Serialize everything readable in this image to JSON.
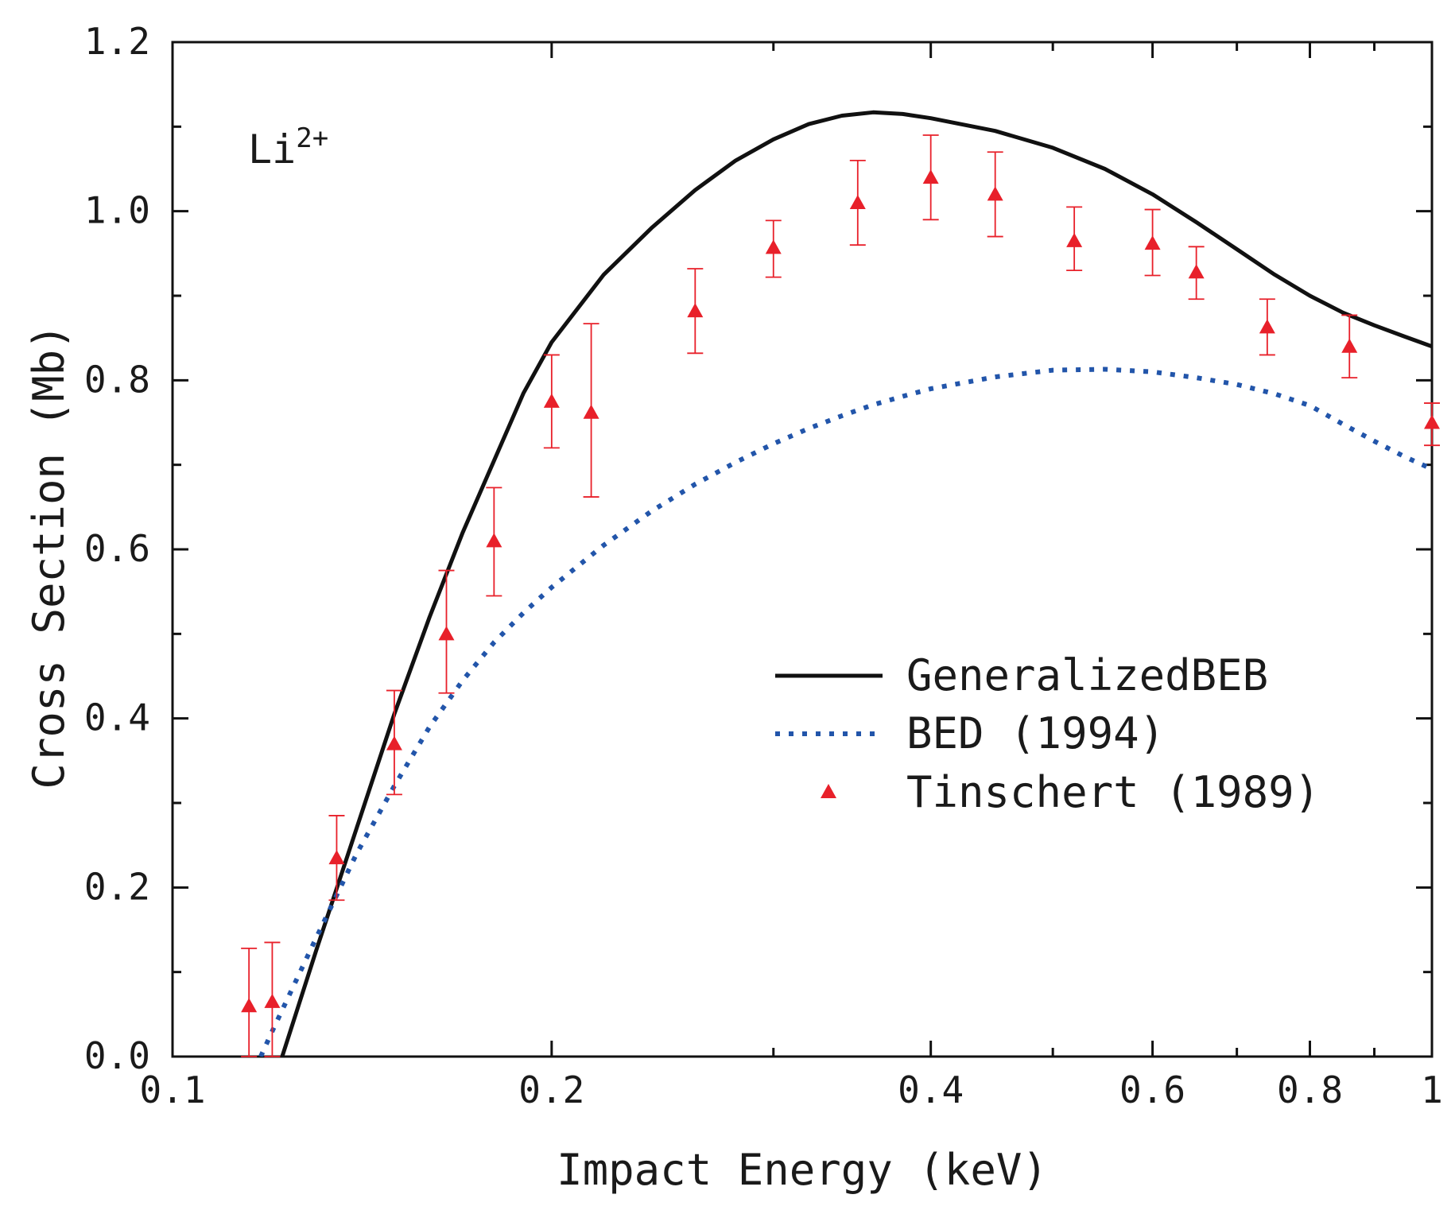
{
  "chart_data": {
    "type": "line",
    "title": "",
    "annotation": {
      "base": "Li",
      "superscript": "2+"
    },
    "xlabel": "Impact Energy (keV)",
    "ylabel": "Cross Section (Mb)",
    "xscale": "log",
    "xlim": [
      0.1,
      1.0
    ],
    "ylim": [
      0.0,
      1.2
    ],
    "xticks": [
      {
        "value": 0.1,
        "label": "0.1"
      },
      {
        "value": 0.2,
        "label": "0.2"
      },
      {
        "value": 0.4,
        "label": "0.4"
      },
      {
        "value": 0.6,
        "label": "0.6"
      },
      {
        "value": 0.8,
        "label": "0.8"
      },
      {
        "value": 1.0,
        "label": "1"
      }
    ],
    "xminor": [
      0.3,
      0.5,
      0.7,
      0.9
    ],
    "yticks": [
      {
        "value": 0.0,
        "label": "0.0"
      },
      {
        "value": 0.2,
        "label": "0.2"
      },
      {
        "value": 0.4,
        "label": "0.4"
      },
      {
        "value": 0.6,
        "label": "0.6"
      },
      {
        "value": 0.8,
        "label": "0.8"
      },
      {
        "value": 1.0,
        "label": "1.0"
      },
      {
        "value": 1.2,
        "label": "1.2"
      }
    ],
    "yminor": [
      0.1,
      0.3,
      0.5,
      0.7,
      0.9,
      1.1
    ],
    "legend_position": "center-right",
    "series": [
      {
        "name": "GeneralizedBEB",
        "style": "solid",
        "color": "#111111",
        "x": [
          0.1222,
          0.13,
          0.14,
          0.15,
          0.16,
          0.17,
          0.18,
          0.19,
          0.2,
          0.22,
          0.24,
          0.26,
          0.28,
          0.3,
          0.32,
          0.34,
          0.36,
          0.38,
          0.4,
          0.45,
          0.5,
          0.55,
          0.6,
          0.65,
          0.7,
          0.75,
          0.8,
          0.85,
          0.9,
          0.95,
          1.0
        ],
        "y": [
          0.0,
          0.125,
          0.27,
          0.405,
          0.52,
          0.62,
          0.705,
          0.785,
          0.845,
          0.925,
          0.98,
          1.025,
          1.06,
          1.085,
          1.103,
          1.113,
          1.117,
          1.115,
          1.11,
          1.095,
          1.075,
          1.05,
          1.02,
          0.987,
          0.955,
          0.925,
          0.9,
          0.88,
          0.865,
          0.852,
          0.84
        ]
      },
      {
        "name": "BED (1994)",
        "style": "dotted",
        "color": "#2255aa",
        "x": [
          0.1175,
          0.12,
          0.13,
          0.14,
          0.15,
          0.16,
          0.17,
          0.18,
          0.19,
          0.2,
          0.22,
          0.24,
          0.26,
          0.28,
          0.3,
          0.32,
          0.34,
          0.36,
          0.38,
          0.4,
          0.45,
          0.5,
          0.55,
          0.6,
          0.65,
          0.7,
          0.75,
          0.8,
          0.85,
          0.9,
          0.95,
          1.0
        ],
        "y": [
          0.0,
          0.03,
          0.14,
          0.24,
          0.32,
          0.39,
          0.445,
          0.49,
          0.525,
          0.555,
          0.605,
          0.645,
          0.677,
          0.703,
          0.725,
          0.743,
          0.758,
          0.771,
          0.781,
          0.79,
          0.804,
          0.812,
          0.813,
          0.81,
          0.803,
          0.795,
          0.784,
          0.77,
          0.748,
          0.728,
          0.71,
          0.695
        ]
      },
      {
        "name": "Tinschert (1989)",
        "style": "markers",
        "marker": "triangle",
        "color": "#e8202a",
        "x": [
          0.115,
          0.12,
          0.135,
          0.15,
          0.165,
          0.18,
          0.2,
          0.215,
          0.26,
          0.3,
          0.35,
          0.4,
          0.45,
          0.52,
          0.6,
          0.65,
          0.74,
          0.86,
          1.0
        ],
        "y": [
          0.06,
          0.065,
          0.235,
          0.37,
          0.5,
          0.61,
          0.775,
          0.762,
          0.882,
          0.957,
          1.01,
          1.04,
          1.02,
          0.965,
          0.962,
          0.928,
          0.863,
          0.84,
          0.75
        ],
        "err_low": [
          0.06,
          0.065,
          0.05,
          0.06,
          0.07,
          0.065,
          0.055,
          0.1,
          0.05,
          0.035,
          0.05,
          0.05,
          0.05,
          0.035,
          0.038,
          0.032,
          0.033,
          0.037,
          0.027
        ],
        "err_high": [
          0.068,
          0.07,
          0.05,
          0.063,
          0.075,
          0.063,
          0.055,
          0.105,
          0.05,
          0.032,
          0.05,
          0.05,
          0.05,
          0.04,
          0.04,
          0.03,
          0.033,
          0.037,
          0.023
        ]
      }
    ]
  }
}
